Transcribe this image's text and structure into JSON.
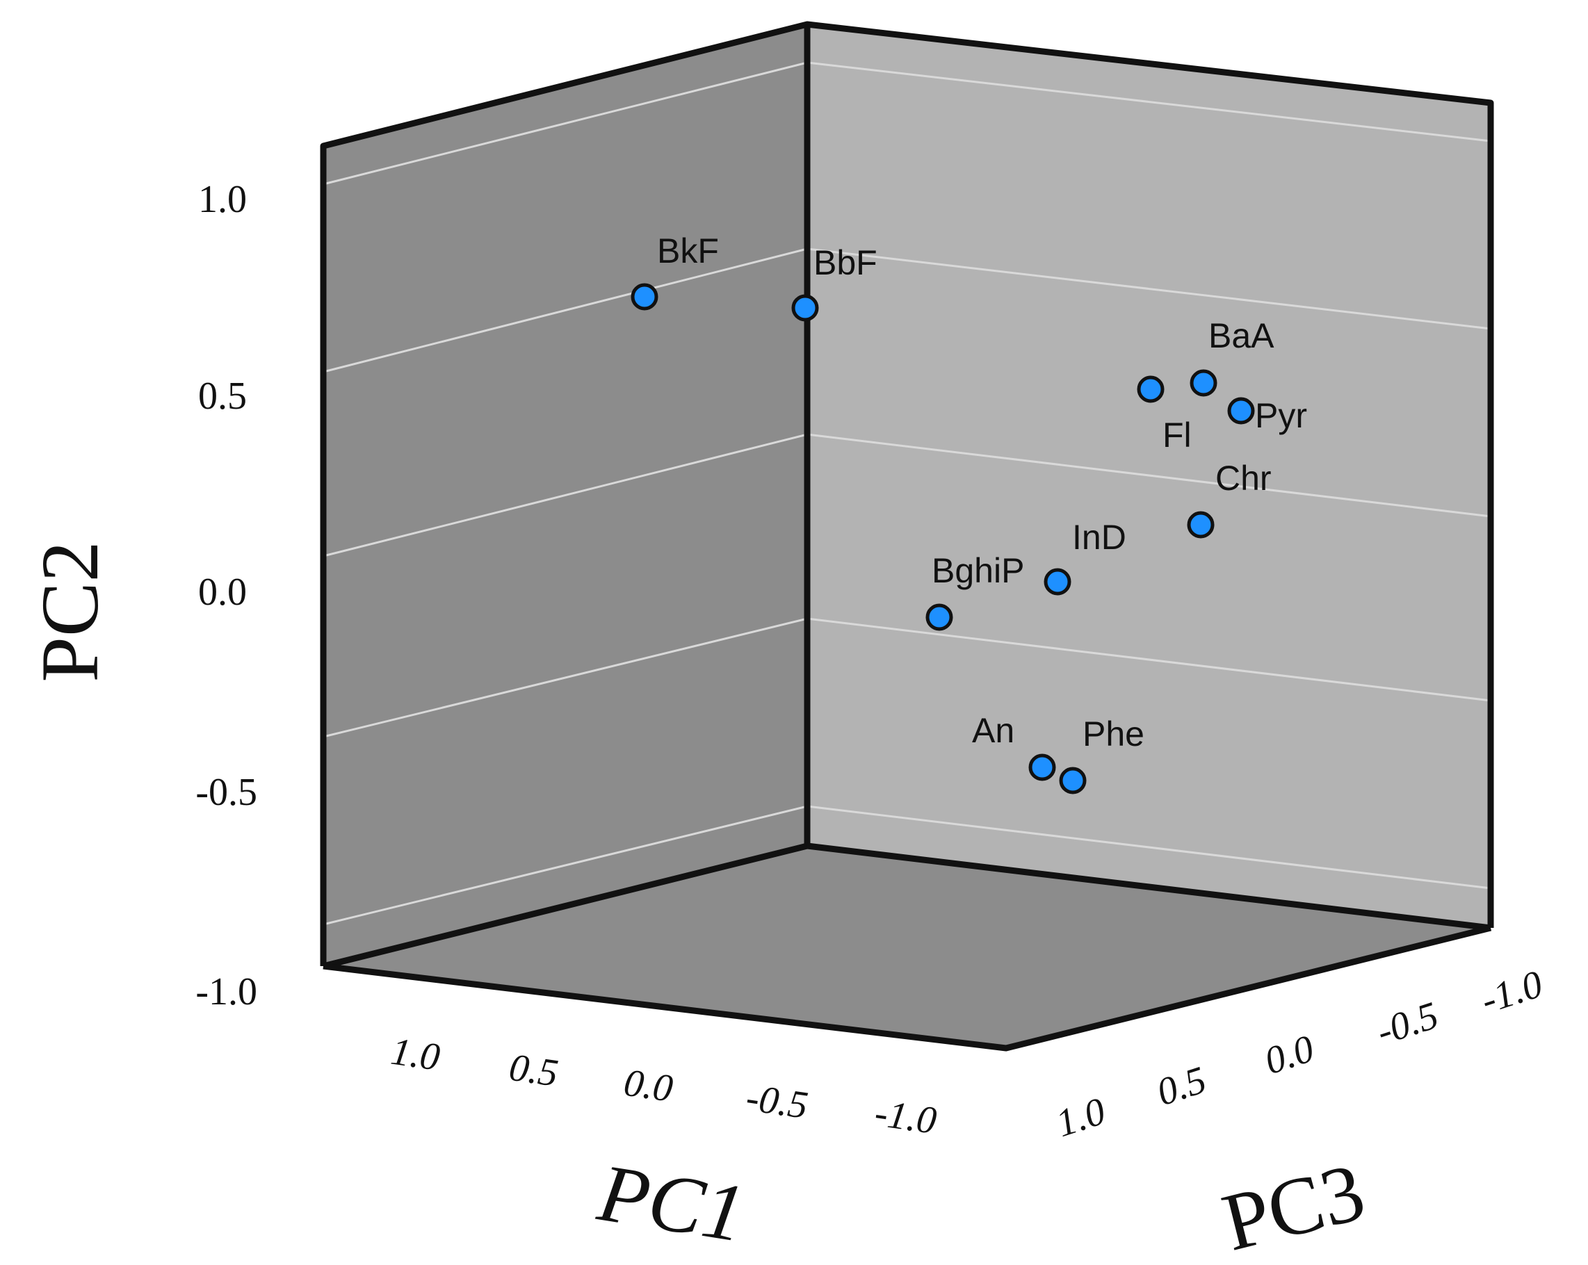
{
  "chart_data": {
    "type": "scatter",
    "projection": "3d",
    "title": "",
    "xlabel": "PC1",
    "ylabel": "PC2",
    "zlabel": "PC3",
    "xlim": [
      -1.0,
      1.0
    ],
    "ylim": [
      -1.0,
      1.0
    ],
    "zlim": [
      -1.0,
      1.0
    ],
    "x_ticks": [
      "1.0",
      "0.5",
      "0.0",
      "-0.5",
      "-1.0"
    ],
    "y_ticks": [
      "1.0",
      "0.5",
      "0.0",
      "-0.5",
      "-1.0"
    ],
    "z_ticks": [
      "1.0",
      "0.5",
      "0.0",
      "-0.5",
      "-1.0"
    ],
    "marker_color": "#1e90ff",
    "points": [
      {
        "label": "BkF",
        "pc2": 0.77
      },
      {
        "label": "BbF",
        "pc2": 0.75
      },
      {
        "label": "BaA",
        "pc2": 0.54
      },
      {
        "label": "Fl",
        "pc2": 0.52
      },
      {
        "label": "Pyr",
        "pc2": 0.46
      },
      {
        "label": "Chr",
        "pc2": 0.17
      },
      {
        "label": "InD",
        "pc2": 0.02
      },
      {
        "label": "BghiP",
        "pc2": -0.08
      },
      {
        "label": "An",
        "pc2": -0.46
      },
      {
        "label": "Phe",
        "pc2": -0.49
      }
    ]
  }
}
